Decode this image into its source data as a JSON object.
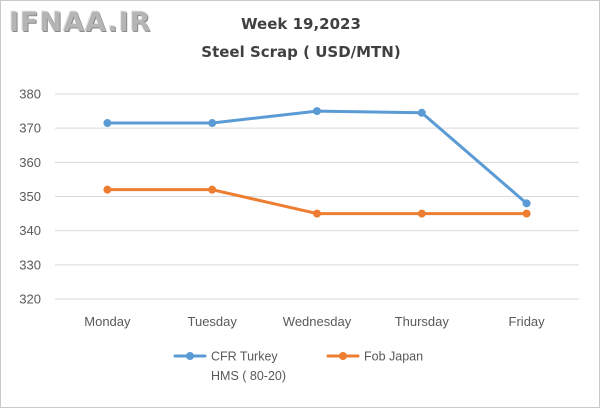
{
  "watermark": "IFNAA.IR",
  "chart_data": {
    "type": "line",
    "title": "Week 19,2023",
    "subtitle": "Steel Scrap ( USD/MTN)",
    "categories": [
      "Monday",
      "Tuesday",
      "Wednesday",
      "Thursday",
      "Friday"
    ],
    "ylim": [
      320,
      380
    ],
    "yticks": [
      "320",
      "330",
      "340",
      "350",
      "360",
      "370",
      "380"
    ],
    "grid": true,
    "legend_position": "bottom",
    "series": [
      {
        "name_line1": "CFR Turkey",
        "name_line2": "HMS ( 80-20)",
        "color": "#5b9bd5",
        "values": [
          371.5,
          371.5,
          375,
          374.5,
          348
        ]
      },
      {
        "name_line1": "Fob Japan",
        "name_line2": "",
        "color": "#ed7d31",
        "values": [
          352,
          352,
          345,
          345,
          345
        ]
      }
    ]
  }
}
